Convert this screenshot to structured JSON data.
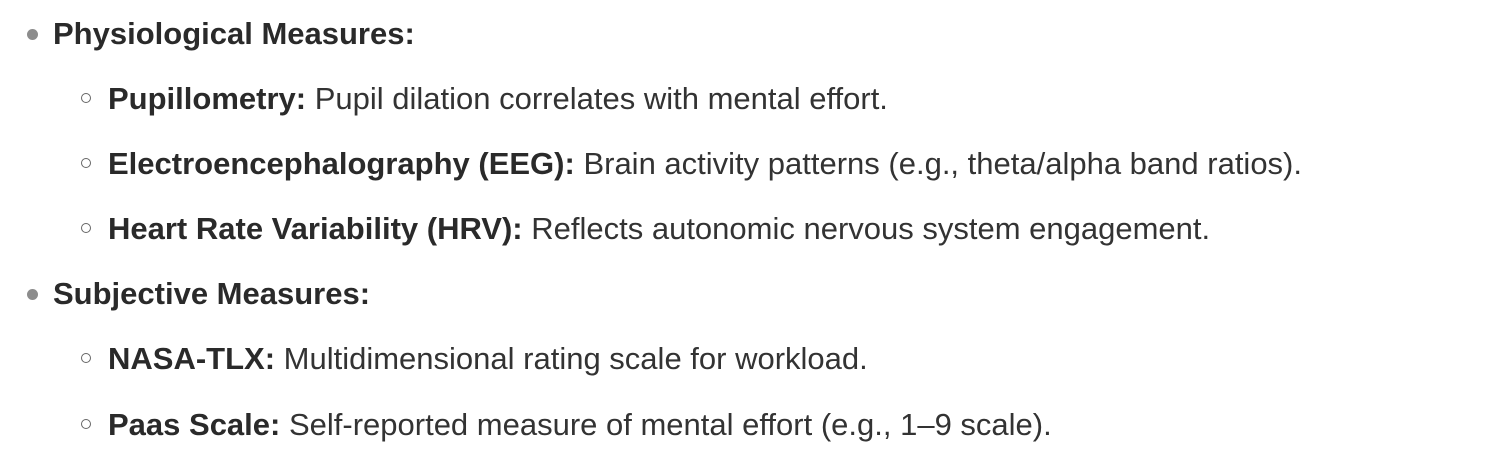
{
  "sections": [
    {
      "heading": "Physiological Measures:",
      "items": [
        {
          "term": "Pupillometry:",
          "desc": " Pupil dilation correlates with mental effort."
        },
        {
          "term": "Electroencephalography (EEG):",
          "desc": " Brain activity patterns (e.g., theta/alpha band ratios)."
        },
        {
          "term": "Heart Rate Variability (HRV):",
          "desc": " Reflects autonomic nervous system engagement."
        }
      ]
    },
    {
      "heading": "Subjective Measures:",
      "items": [
        {
          "term": "NASA-TLX:",
          "desc": " Multidimensional rating scale for workload."
        },
        {
          "term": "Paas Scale:",
          "desc": " Self-reported measure of mental effort (e.g., 1–9 scale)."
        }
      ]
    }
  ]
}
